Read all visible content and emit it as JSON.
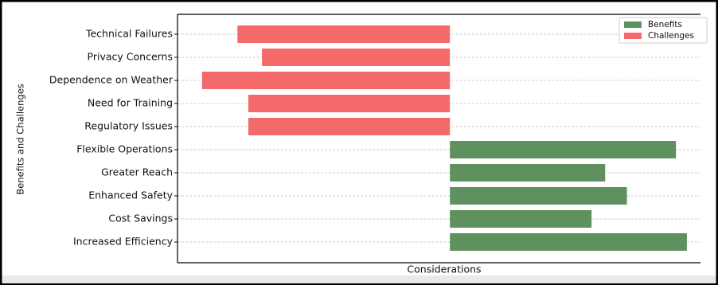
{
  "chart_data": {
    "type": "diverging-bar",
    "x_label": "Considerations",
    "y_label": "Benefits and Challenges",
    "categories": [
      "Technical Failures",
      "Privacy Concerns",
      "Dependence on Weather",
      "Need for Training",
      "Regulatory Issues",
      "Flexible Operations",
      "Greater Reach",
      "Enhanced Safety",
      "Cost Savings",
      "Increased Efficiency"
    ],
    "series": [
      {
        "name": "Benefits",
        "color": "#5e915e",
        "values": [
          null,
          null,
          null,
          null,
          null,
          8.3,
          5.7,
          6.5,
          5.2,
          8.7
        ]
      },
      {
        "name": "Challenges",
        "color": "#f46a6a",
        "values": [
          -7.8,
          -6.9,
          -9.1,
          -7.4,
          -7.4,
          null,
          null,
          null,
          null,
          null
        ]
      }
    ],
    "xlim": [
      -10,
      9.2
    ],
    "grid": true,
    "legend": "upper-right"
  }
}
